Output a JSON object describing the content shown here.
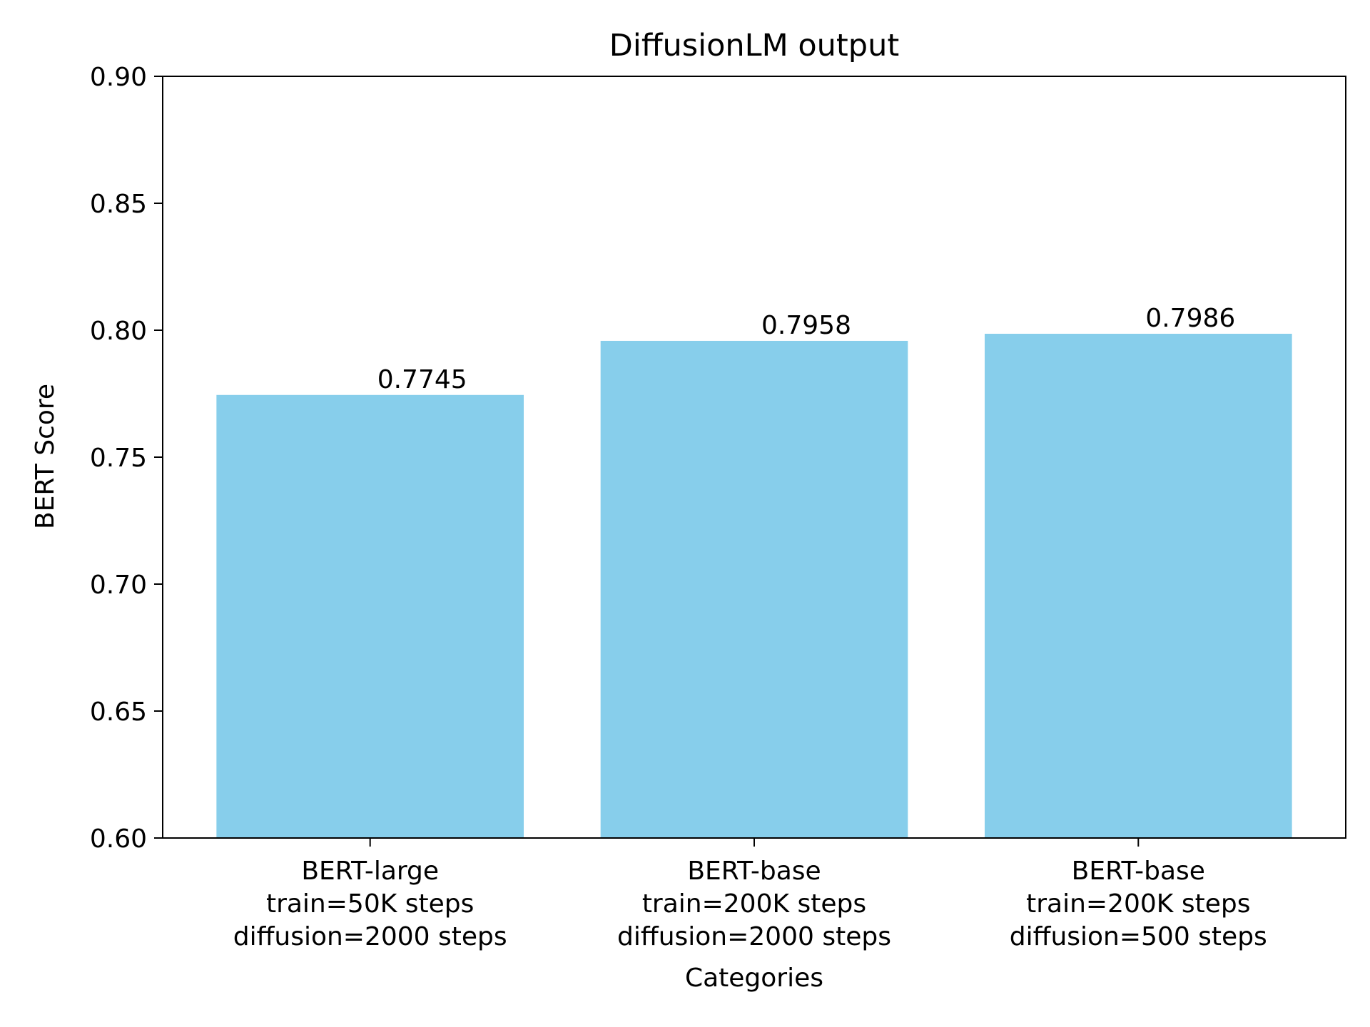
{
  "chart_data": {
    "type": "bar",
    "title": "DiffusionLM output",
    "xlabel": "Categories",
    "ylabel": "BERT Score",
    "ylim": [
      0.6,
      0.9
    ],
    "yticks": [
      "0.60",
      "0.65",
      "0.70",
      "0.75",
      "0.80",
      "0.85",
      "0.90"
    ],
    "grid": false,
    "bar_color": "#87CEEB",
    "categories": [
      [
        "BERT-large",
        "train=50K steps",
        "diffusion=2000 steps"
      ],
      [
        "BERT-base",
        "train=200K steps",
        "diffusion=2000 steps"
      ],
      [
        "BERT-base",
        "train=200K steps",
        "diffusion=500 steps"
      ]
    ],
    "values": [
      0.7745,
      0.7958,
      0.7986
    ],
    "value_labels": [
      "0.7745",
      "0.7958",
      "0.7986"
    ]
  }
}
